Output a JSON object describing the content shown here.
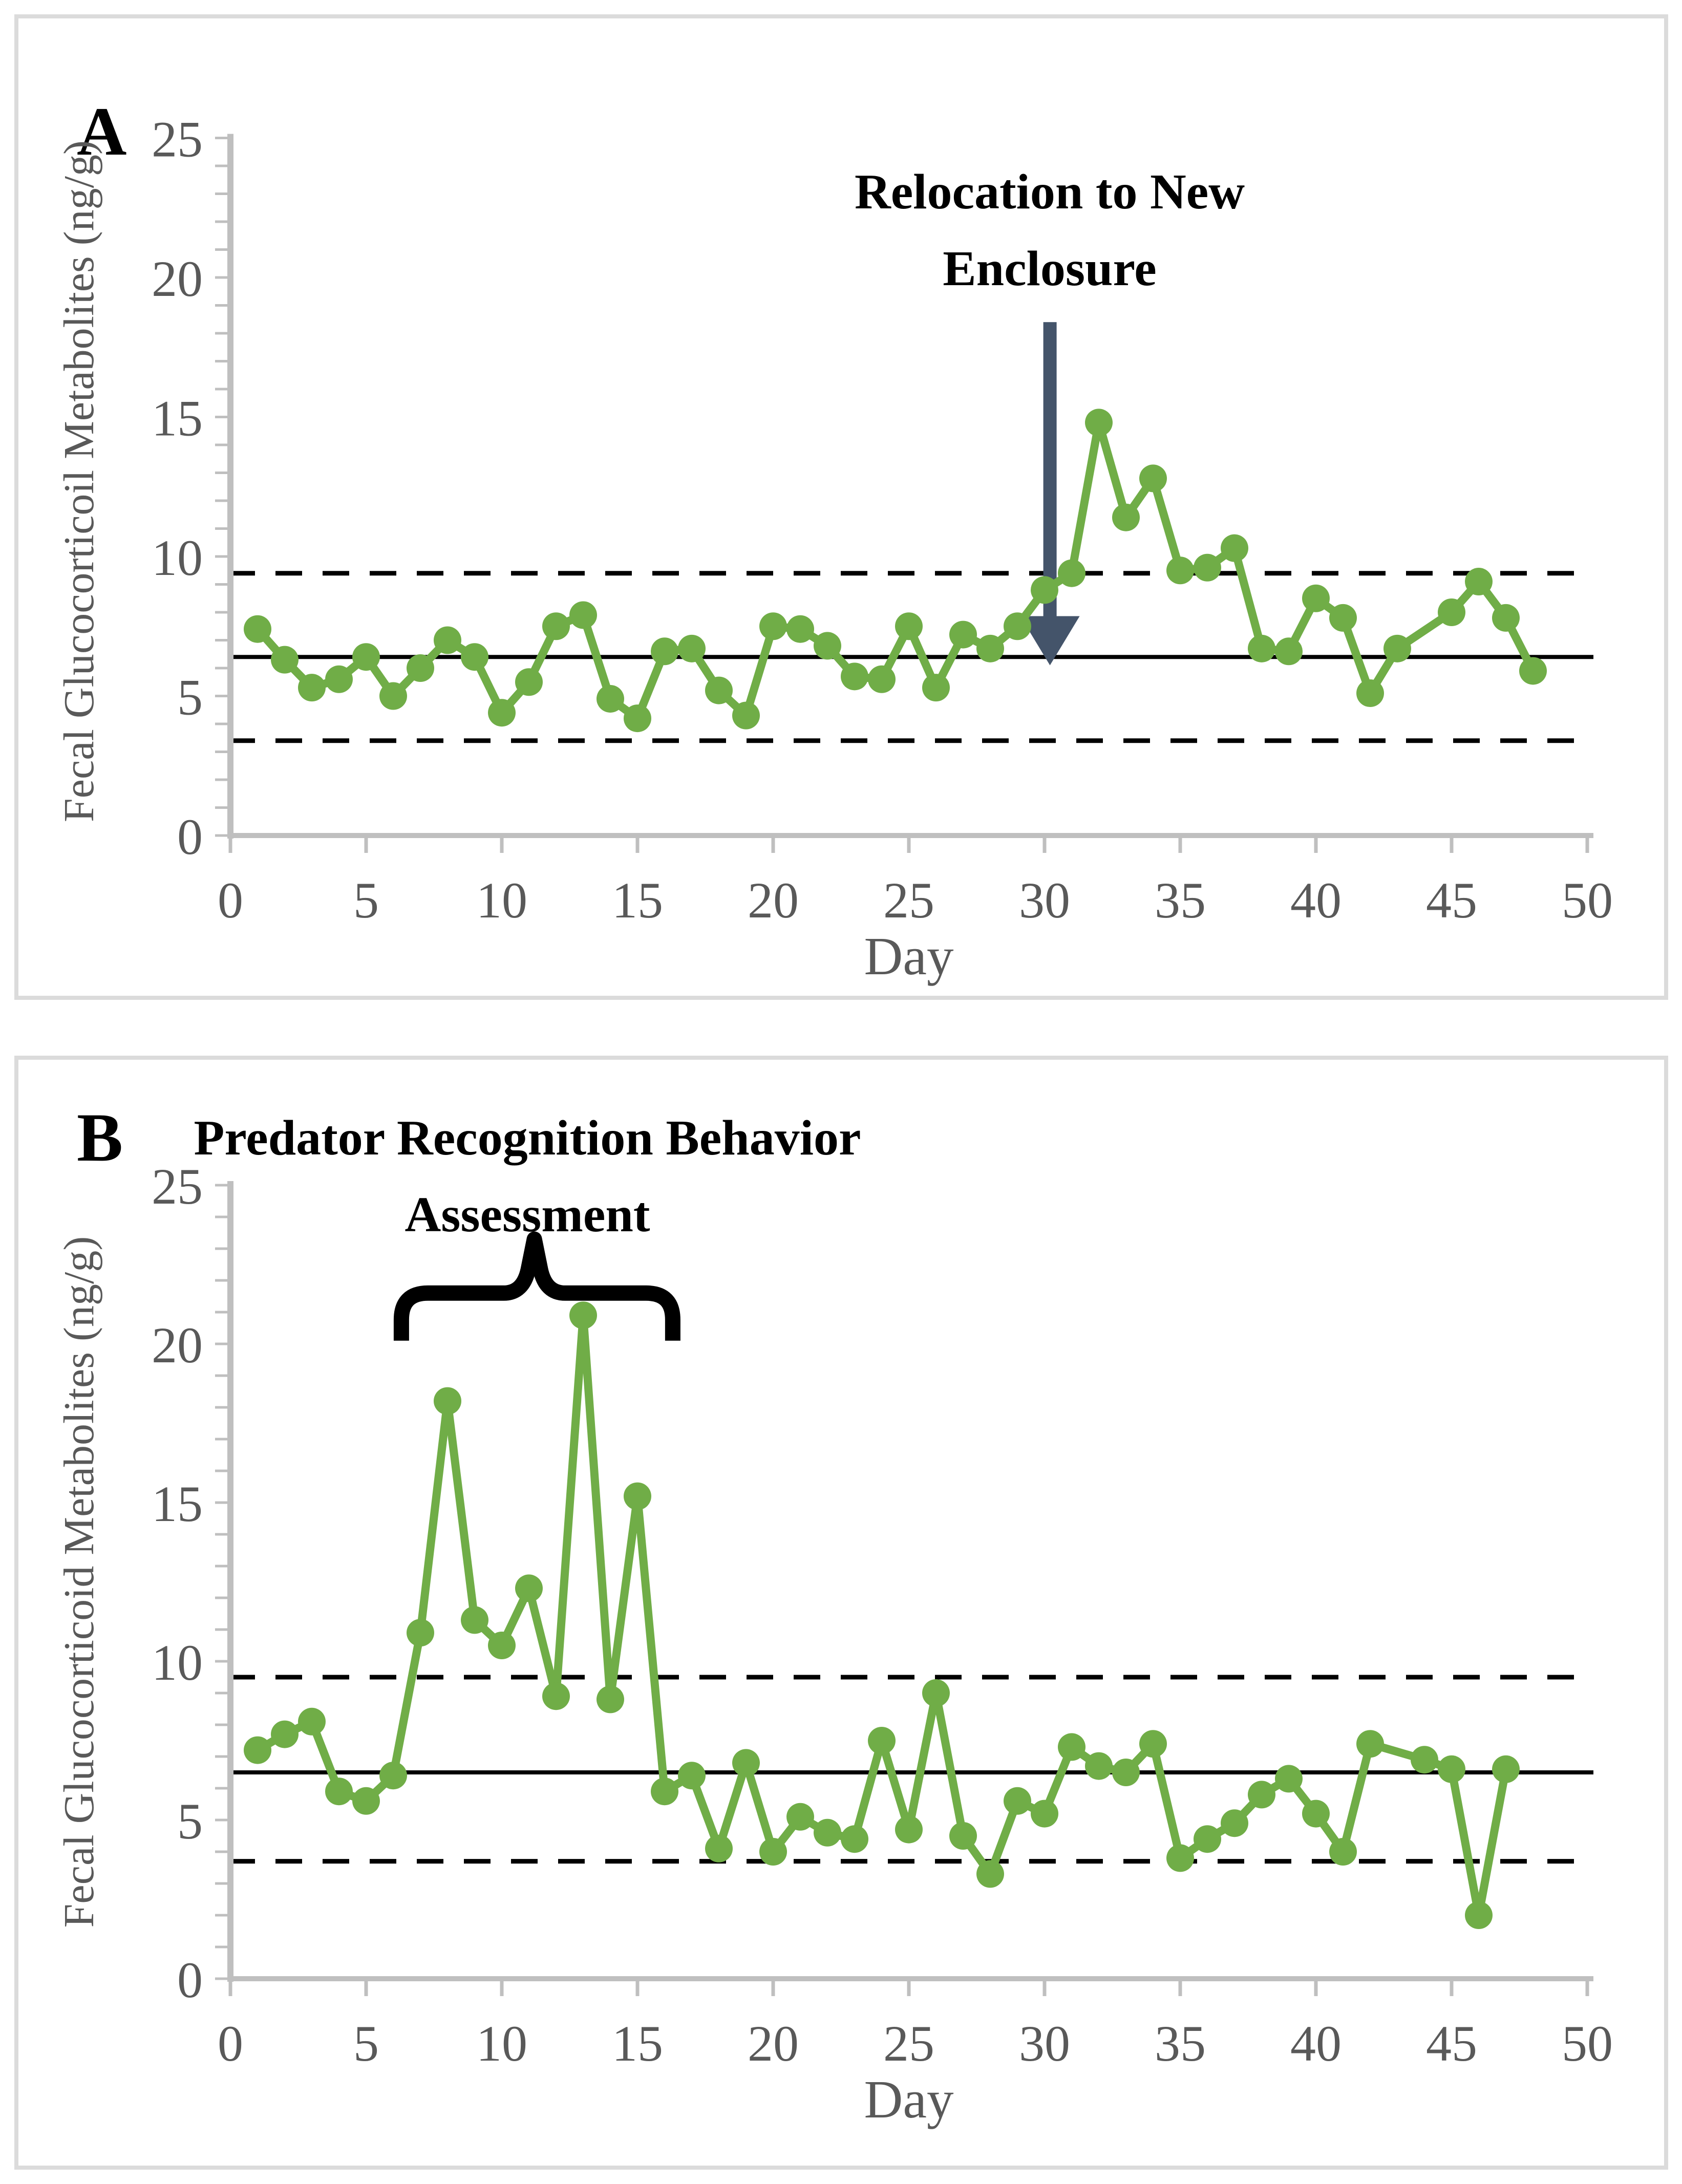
{
  "colors": {
    "series_green": "#70AD47",
    "arrow_dark_blue_gray": "#44546A",
    "axis_line_gray": "#BFBFBF",
    "axis_text_gray": "#595959",
    "reference_line_black": "#000000",
    "panel_border_gray": "#DBDBDB",
    "background": "#FFFFFF"
  },
  "chart_data": [
    {
      "type": "line",
      "panel_label": "A",
      "xlabel": "Day",
      "ylabel": "Fecal Glucocorticoil Metabolites (ng/g)",
      "xlim": [
        0,
        50
      ],
      "ylim": [
        0,
        25
      ],
      "x_ticks": [
        0,
        5,
        10,
        15,
        20,
        25,
        30,
        35,
        40,
        45,
        50
      ],
      "y_ticks": [
        0,
        5,
        10,
        15,
        20,
        25
      ],
      "y_minor_tick_step": 1,
      "grid": false,
      "legend": null,
      "reference_lines": {
        "mean_solid": 6.4,
        "upper_dashed": 9.4,
        "lower_dashed": 3.4
      },
      "annotation": {
        "lines": [
          "Relocation to New",
          "Enclosure"
        ],
        "arrow": {
          "day": 30.2,
          "from_value": 18.4,
          "to_value": 6.1
        }
      },
      "series": [
        {
          "name": "fecal glucocorticoid metabolites",
          "marker": "circle",
          "points": [
            [
              1,
              7.4
            ],
            [
              2,
              6.3
            ],
            [
              3,
              5.3
            ],
            [
              4,
              5.6
            ],
            [
              5,
              6.4
            ],
            [
              6,
              5.0
            ],
            [
              7,
              6.0
            ],
            [
              8,
              7.0
            ],
            [
              9,
              6.4
            ],
            [
              10,
              4.4
            ],
            [
              11,
              5.5
            ],
            [
              12,
              7.5
            ],
            [
              13,
              7.9
            ],
            [
              14,
              4.9
            ],
            [
              15,
              4.2
            ],
            [
              16,
              6.6
            ],
            [
              17,
              6.7
            ],
            [
              18,
              5.2
            ],
            [
              19,
              4.3
            ],
            [
              20,
              7.5
            ],
            [
              21,
              7.4
            ],
            [
              22,
              6.8
            ],
            [
              23,
              5.7
            ],
            [
              24,
              5.6
            ],
            [
              25,
              7.5
            ],
            [
              26,
              5.3
            ],
            [
              27,
              7.2
            ],
            [
              28,
              6.7
            ],
            [
              29,
              7.5
            ],
            [
              30,
              8.8
            ],
            [
              31,
              9.4
            ],
            [
              32,
              14.8
            ],
            [
              33,
              11.4
            ],
            [
              34,
              12.8
            ],
            [
              35,
              9.5
            ],
            [
              36,
              9.6
            ],
            [
              37,
              10.3
            ],
            [
              38,
              6.7
            ],
            [
              39,
              6.6
            ],
            [
              40,
              8.5
            ],
            [
              41,
              7.8
            ],
            [
              42,
              5.1
            ],
            [
              43,
              6.7
            ],
            [
              45,
              8.0
            ],
            [
              46,
              9.1
            ],
            [
              47,
              7.8
            ],
            [
              48,
              5.9
            ]
          ]
        }
      ]
    },
    {
      "type": "line",
      "panel_label": "B",
      "xlabel": "Day",
      "ylabel": "Fecal Glucocorticoid Metabolites (ng/g)",
      "xlim": [
        0,
        50
      ],
      "ylim": [
        0,
        25
      ],
      "x_ticks": [
        0,
        5,
        10,
        15,
        20,
        25,
        30,
        35,
        40,
        45,
        50
      ],
      "y_ticks": [
        0,
        5,
        10,
        15,
        20,
        25
      ],
      "y_minor_tick_step": 1,
      "grid": false,
      "legend": null,
      "reference_lines": {
        "mean_solid": 6.5,
        "upper_dashed": 9.5,
        "lower_dashed": 3.7
      },
      "annotation": {
        "lines": [
          "Predator Recognition Behavior",
          "Assessment"
        ],
        "brace": {
          "from_day": 6.3,
          "to_day": 16.3,
          "peak_day": 11.2,
          "bar_value": 21.6,
          "peak_value": 23.3,
          "end_value": 20.1
        }
      },
      "series": [
        {
          "name": "fecal glucocorticoid metabolites",
          "marker": "circle",
          "points": [
            [
              1,
              7.2
            ],
            [
              2,
              7.7
            ],
            [
              3,
              8.1
            ],
            [
              4,
              5.9
            ],
            [
              5,
              5.6
            ],
            [
              6,
              6.4
            ],
            [
              7,
              10.9
            ],
            [
              8,
              18.2
            ],
            [
              9,
              11.3
            ],
            [
              10,
              10.5
            ],
            [
              11,
              12.3
            ],
            [
              12,
              8.9
            ],
            [
              13,
              20.9
            ],
            [
              14,
              8.8
            ],
            [
              15,
              15.2
            ],
            [
              16,
              5.9
            ],
            [
              17,
              6.4
            ],
            [
              18,
              4.1
            ],
            [
              19,
              6.8
            ],
            [
              20,
              4.0
            ],
            [
              21,
              5.1
            ],
            [
              22,
              4.6
            ],
            [
              23,
              4.4
            ],
            [
              24,
              7.5
            ],
            [
              25,
              4.7
            ],
            [
              26,
              9.0
            ],
            [
              27,
              4.5
            ],
            [
              28,
              3.3
            ],
            [
              29,
              5.6
            ],
            [
              30,
              5.2
            ],
            [
              31,
              7.3
            ],
            [
              32,
              6.7
            ],
            [
              33,
              6.5
            ],
            [
              34,
              7.4
            ],
            [
              35,
              3.8
            ],
            [
              36,
              4.4
            ],
            [
              37,
              4.9
            ],
            [
              38,
              5.8
            ],
            [
              39,
              6.3
            ],
            [
              40,
              5.2
            ],
            [
              41,
              4.0
            ],
            [
              42,
              7.4
            ],
            [
              44,
              6.9
            ],
            [
              45,
              6.6
            ],
            [
              46,
              2.0
            ],
            [
              47,
              6.6
            ]
          ]
        }
      ]
    }
  ]
}
